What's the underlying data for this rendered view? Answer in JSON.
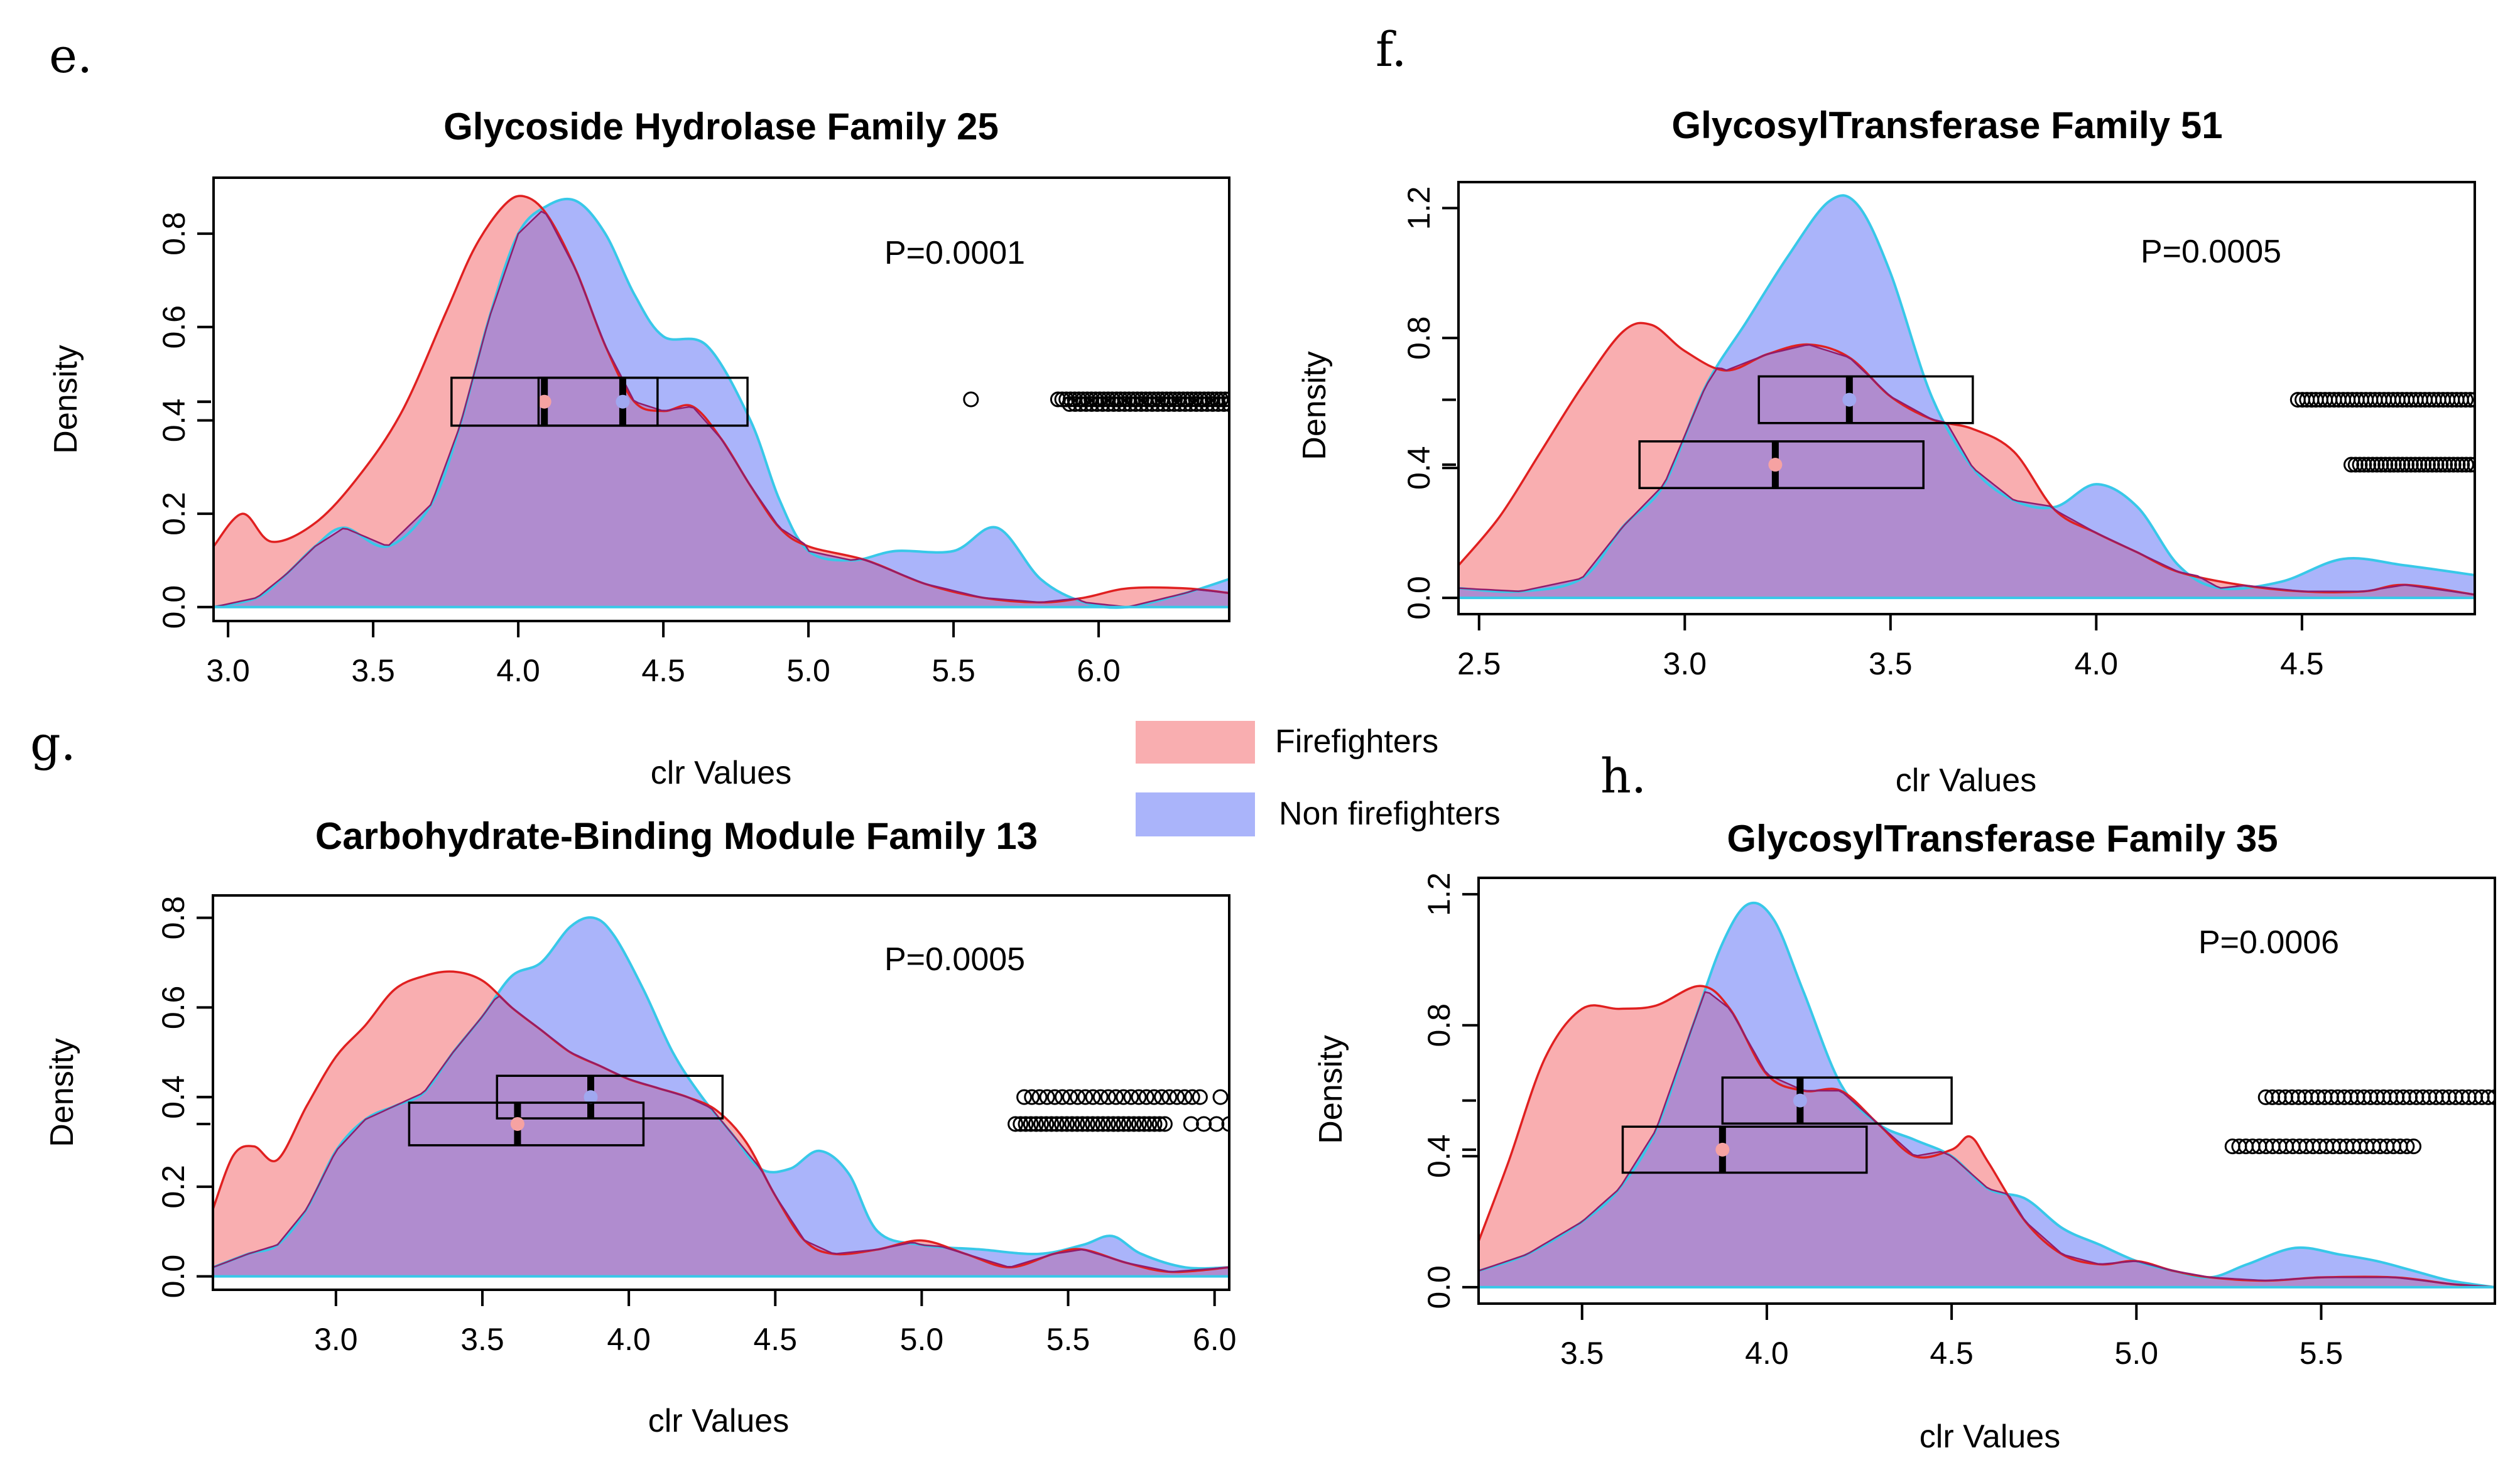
{
  "legend": {
    "position": "center",
    "items": [
      {
        "label": "Firefighters",
        "color": "#f9aeb0"
      },
      {
        "label": "Non firefighters",
        "color": "#aab4fa"
      }
    ]
  },
  "colors": {
    "firefighters_fill": "#f9aeb0",
    "firefighters_line": "#e02020",
    "non_firefighters_fill": "#aab4fa",
    "non_firefighters_line": "#38c8e8",
    "overlap_fill": "#b08ccf",
    "overlap_line": "#901c6c"
  },
  "chart_data": [
    {
      "panel": "e.",
      "type": "area",
      "title": "Glycoside Hydrolase Family 25",
      "xlabel": "clr Values",
      "ylabel": "Density",
      "xlim": [
        2.95,
        6.45
      ],
      "ylim": [
        -0.03,
        0.92
      ],
      "xticks": [
        3.0,
        3.5,
        4.0,
        4.5,
        5.0,
        5.5,
        6.0
      ],
      "xtick_labels": [
        "3.0",
        "3.5",
        "4.0",
        "4.5",
        "5.0",
        "5.5",
        "6.0"
      ],
      "yticks": [
        0.0,
        0.2,
        0.4,
        0.6,
        0.8
      ],
      "ytick_labels": [
        "0.0",
        "0.2",
        "0.4",
        "0.6",
        "0.8"
      ],
      "p_value": "P=0.0001",
      "series": [
        {
          "name": "Firefighters",
          "x": [
            2.95,
            3.05,
            3.15,
            3.3,
            3.45,
            3.6,
            3.75,
            3.85,
            3.95,
            4.02,
            4.1,
            4.2,
            4.3,
            4.4,
            4.5,
            4.6,
            4.7,
            4.8,
            4.9,
            5.0,
            5.2,
            5.4,
            5.6,
            5.8,
            5.95,
            6.1,
            6.3,
            6.45
          ],
          "y": [
            0.13,
            0.2,
            0.14,
            0.18,
            0.28,
            0.42,
            0.63,
            0.77,
            0.86,
            0.88,
            0.84,
            0.72,
            0.56,
            0.44,
            0.42,
            0.43,
            0.36,
            0.26,
            0.17,
            0.13,
            0.1,
            0.05,
            0.02,
            0.01,
            0.02,
            0.04,
            0.04,
            0.03
          ]
        },
        {
          "name": "Non firefighters",
          "x": [
            2.95,
            3.1,
            3.2,
            3.3,
            3.4,
            3.55,
            3.7,
            3.8,
            3.9,
            4.0,
            4.1,
            4.2,
            4.3,
            4.4,
            4.5,
            4.65,
            4.8,
            4.9,
            5.0,
            5.15,
            5.3,
            5.5,
            5.65,
            5.8,
            5.95,
            6.1,
            6.3,
            6.45
          ],
          "y": [
            0.0,
            0.02,
            0.07,
            0.13,
            0.17,
            0.13,
            0.22,
            0.39,
            0.62,
            0.8,
            0.86,
            0.87,
            0.8,
            0.67,
            0.58,
            0.56,
            0.4,
            0.23,
            0.12,
            0.1,
            0.12,
            0.12,
            0.17,
            0.06,
            0.01,
            0.0,
            0.03,
            0.06
          ]
        }
      ],
      "boxplots": [
        {
          "name": "Firefighters",
          "q1": 3.77,
          "median": 4.09,
          "q3": 4.48,
          "density_level": 0.44
        },
        {
          "name": "Non firefighters",
          "q1": 4.07,
          "median": 4.36,
          "q3": 4.79,
          "density_level": 0.44
        }
      ],
      "outliers": [
        {
          "name": "Firefighters",
          "from": 5.56,
          "to": 5.56,
          "count": 1,
          "density_level": 0.445
        },
        {
          "name": "Firefighters",
          "from": 5.86,
          "to": 6.45,
          "count": 42,
          "density_level": 0.445
        },
        {
          "name": "Non firefighters",
          "from": 5.9,
          "to": 6.45,
          "count": 30,
          "density_level": 0.435
        }
      ]
    },
    {
      "panel": "f.",
      "type": "area",
      "title": "GlycosylTransferase Family 51",
      "xlabel": "clr Values",
      "ylabel": "Density",
      "xlim": [
        2.45,
        4.92
      ],
      "ylim": [
        -0.05,
        1.28
      ],
      "xticks": [
        2.5,
        3.0,
        3.5,
        4.0,
        4.5
      ],
      "xtick_labels": [
        "2.5",
        "3.0",
        "3.5",
        "4.0",
        "4.5"
      ],
      "yticks": [
        0.0,
        0.4,
        0.8,
        1.2
      ],
      "ytick_labels": [
        "0.0",
        "0.4",
        "0.8",
        "1.2"
      ],
      "p_value": "P=0.0005",
      "series": [
        {
          "name": "Firefighters",
          "x": [
            2.45,
            2.55,
            2.65,
            2.75,
            2.85,
            2.92,
            3.0,
            3.1,
            3.2,
            3.3,
            3.4,
            3.5,
            3.6,
            3.7,
            3.8,
            3.9,
            4.0,
            4.1,
            4.2,
            4.35,
            4.5,
            4.65,
            4.75,
            4.92
          ],
          "y": [
            0.1,
            0.25,
            0.45,
            0.65,
            0.82,
            0.84,
            0.76,
            0.7,
            0.75,
            0.78,
            0.74,
            0.62,
            0.55,
            0.52,
            0.45,
            0.27,
            0.2,
            0.14,
            0.08,
            0.04,
            0.02,
            0.02,
            0.04,
            0.01
          ]
        },
        {
          "name": "Non firefighters",
          "x": [
            2.45,
            2.6,
            2.75,
            2.85,
            2.95,
            3.05,
            3.15,
            3.25,
            3.35,
            3.42,
            3.5,
            3.6,
            3.7,
            3.8,
            3.9,
            4.0,
            4.1,
            4.2,
            4.3,
            4.45,
            4.6,
            4.75,
            4.92
          ],
          "y": [
            0.03,
            0.02,
            0.06,
            0.22,
            0.35,
            0.65,
            0.85,
            1.05,
            1.22,
            1.21,
            1.0,
            0.62,
            0.4,
            0.3,
            0.28,
            0.35,
            0.28,
            0.1,
            0.03,
            0.05,
            0.12,
            0.1,
            0.07
          ]
        }
      ],
      "boxplots": [
        {
          "name": "Non firefighters",
          "q1": 3.18,
          "median": 3.4,
          "q3": 3.7,
          "density_level": 0.61
        },
        {
          "name": "Firefighters",
          "q1": 2.89,
          "median": 3.22,
          "q3": 3.58,
          "density_level": 0.41
        }
      ],
      "outliers": [
        {
          "name": "Non firefighters",
          "from": 4.49,
          "to": 4.92,
          "count": 40,
          "density_level": 0.61
        },
        {
          "name": "Firefighters",
          "from": 4.62,
          "to": 4.92,
          "count": 30,
          "density_level": 0.41
        }
      ]
    },
    {
      "panel": "g.",
      "type": "area",
      "title": "Carbohydrate-Binding Module Family 13",
      "xlabel": "clr Values",
      "ylabel": "Density",
      "xlim": [
        2.58,
        6.05
      ],
      "ylim": [
        -0.03,
        0.85
      ],
      "xticks": [
        3.0,
        3.5,
        4.0,
        4.5,
        5.0,
        5.5,
        6.0
      ],
      "xtick_labels": [
        "3.0",
        "3.5",
        "4.0",
        "4.5",
        "5.0",
        "5.5",
        "6.0"
      ],
      "yticks": [
        0.0,
        0.2,
        0.4,
        0.6,
        0.8
      ],
      "ytick_labels": [
        "0.0",
        "0.2",
        "0.4",
        "0.6",
        "0.8"
      ],
      "p_value": "P=0.0005",
      "series": [
        {
          "name": "Firefighters",
          "x": [
            2.58,
            2.65,
            2.72,
            2.8,
            2.9,
            3.0,
            3.1,
            3.2,
            3.3,
            3.4,
            3.5,
            3.6,
            3.7,
            3.8,
            3.9,
            4.0,
            4.1,
            4.2,
            4.3,
            4.4,
            4.5,
            4.6,
            4.7,
            4.85,
            5.0,
            5.15,
            5.3,
            5.45,
            5.55,
            5.7,
            5.85,
            6.05
          ],
          "y": [
            0.15,
            0.27,
            0.29,
            0.26,
            0.38,
            0.49,
            0.56,
            0.64,
            0.67,
            0.68,
            0.66,
            0.6,
            0.55,
            0.5,
            0.47,
            0.44,
            0.42,
            0.4,
            0.37,
            0.3,
            0.18,
            0.08,
            0.05,
            0.06,
            0.08,
            0.05,
            0.02,
            0.05,
            0.06,
            0.03,
            0.01,
            0.02
          ]
        },
        {
          "name": "Non firefighters",
          "x": [
            2.58,
            2.7,
            2.8,
            2.9,
            3.0,
            3.1,
            3.2,
            3.3,
            3.4,
            3.5,
            3.6,
            3.7,
            3.8,
            3.88,
            3.95,
            4.05,
            4.15,
            4.25,
            4.35,
            4.45,
            4.55,
            4.65,
            4.75,
            4.85,
            5.0,
            5.2,
            5.4,
            5.55,
            5.65,
            5.75,
            5.9,
            6.05
          ],
          "y": [
            0.02,
            0.05,
            0.07,
            0.15,
            0.28,
            0.35,
            0.38,
            0.41,
            0.5,
            0.58,
            0.67,
            0.7,
            0.78,
            0.8,
            0.76,
            0.64,
            0.5,
            0.4,
            0.32,
            0.24,
            0.24,
            0.28,
            0.23,
            0.1,
            0.07,
            0.06,
            0.05,
            0.07,
            0.09,
            0.05,
            0.02,
            0.02
          ]
        }
      ],
      "boxplots": [
        {
          "name": "Non firefighters",
          "q1": 3.55,
          "median": 3.87,
          "q3": 4.32,
          "density_level": 0.4
        },
        {
          "name": "Firefighters",
          "q1": 3.25,
          "median": 3.62,
          "q3": 4.05,
          "density_level": 0.34
        }
      ],
      "outliers": [
        {
          "name": "Non firefighters",
          "from": 5.35,
          "to": 5.95,
          "count": 24,
          "density_level": 0.4
        },
        {
          "name": "Non firefighters",
          "from": 6.02,
          "to": 6.02,
          "count": 1,
          "density_level": 0.4
        },
        {
          "name": "Firefighters",
          "from": 5.32,
          "to": 5.83,
          "count": 30,
          "density_level": 0.34
        },
        {
          "name": "Firefighters",
          "from": 5.92,
          "to": 6.05,
          "count": 4,
          "density_level": 0.34
        }
      ]
    },
    {
      "panel": "h.",
      "type": "area",
      "title": "GlycosylTransferase Family 35",
      "xlabel": "clr Values",
      "ylabel": "Density",
      "xlim": [
        3.22,
        5.97
      ],
      "ylim": [
        -0.05,
        1.25
      ],
      "xticks": [
        3.5,
        4.0,
        4.5,
        5.0,
        5.5
      ],
      "xtick_labels": [
        "3.5",
        "4.0",
        "4.5",
        "5.0",
        "5.5"
      ],
      "yticks": [
        0.0,
        0.4,
        0.8,
        1.2
      ],
      "ytick_labels": [
        "0.0",
        "0.4",
        "0.8",
        "1.2"
      ],
      "p_value": "P=0.0006",
      "series": [
        {
          "name": "Firefighters",
          "x": [
            3.22,
            3.3,
            3.4,
            3.5,
            3.6,
            3.7,
            3.82,
            3.9,
            4.0,
            4.1,
            4.2,
            4.3,
            4.4,
            4.5,
            4.55,
            4.6,
            4.7,
            4.8,
            4.9,
            5.0,
            5.1,
            5.2,
            5.35,
            5.5,
            5.7,
            5.85,
            5.97
          ],
          "y": [
            0.14,
            0.38,
            0.7,
            0.85,
            0.85,
            0.86,
            0.92,
            0.85,
            0.65,
            0.6,
            0.6,
            0.5,
            0.4,
            0.42,
            0.46,
            0.38,
            0.2,
            0.1,
            0.07,
            0.08,
            0.05,
            0.03,
            0.02,
            0.03,
            0.03,
            0.01,
            0.0
          ]
        },
        {
          "name": "Non firefighters",
          "x": [
            3.22,
            3.35,
            3.5,
            3.6,
            3.7,
            3.8,
            3.88,
            3.95,
            4.02,
            4.1,
            4.2,
            4.3,
            4.4,
            4.5,
            4.6,
            4.7,
            4.8,
            4.9,
            5.0,
            5.1,
            5.2,
            5.3,
            5.43,
            5.55,
            5.65,
            5.75,
            5.85,
            5.97
          ],
          "y": [
            0.05,
            0.1,
            0.2,
            0.3,
            0.48,
            0.8,
            1.05,
            1.17,
            1.12,
            0.9,
            0.62,
            0.5,
            0.45,
            0.4,
            0.3,
            0.27,
            0.18,
            0.13,
            0.08,
            0.05,
            0.03,
            0.07,
            0.12,
            0.1,
            0.08,
            0.05,
            0.02,
            0.0
          ]
        }
      ],
      "boxplots": [
        {
          "name": "Non firefighters",
          "q1": 3.88,
          "median": 4.09,
          "q3": 4.5,
          "density_level": 0.57
        },
        {
          "name": "Firefighters",
          "q1": 3.61,
          "median": 3.88,
          "q3": 4.27,
          "density_level": 0.42
        }
      ],
      "outliers": [
        {
          "name": "Non firefighters",
          "from": 5.35,
          "to": 5.97,
          "count": 36,
          "density_level": 0.58
        },
        {
          "name": "Firefighters",
          "from": 5.26,
          "to": 5.75,
          "count": 28,
          "density_level": 0.43
        }
      ]
    }
  ]
}
